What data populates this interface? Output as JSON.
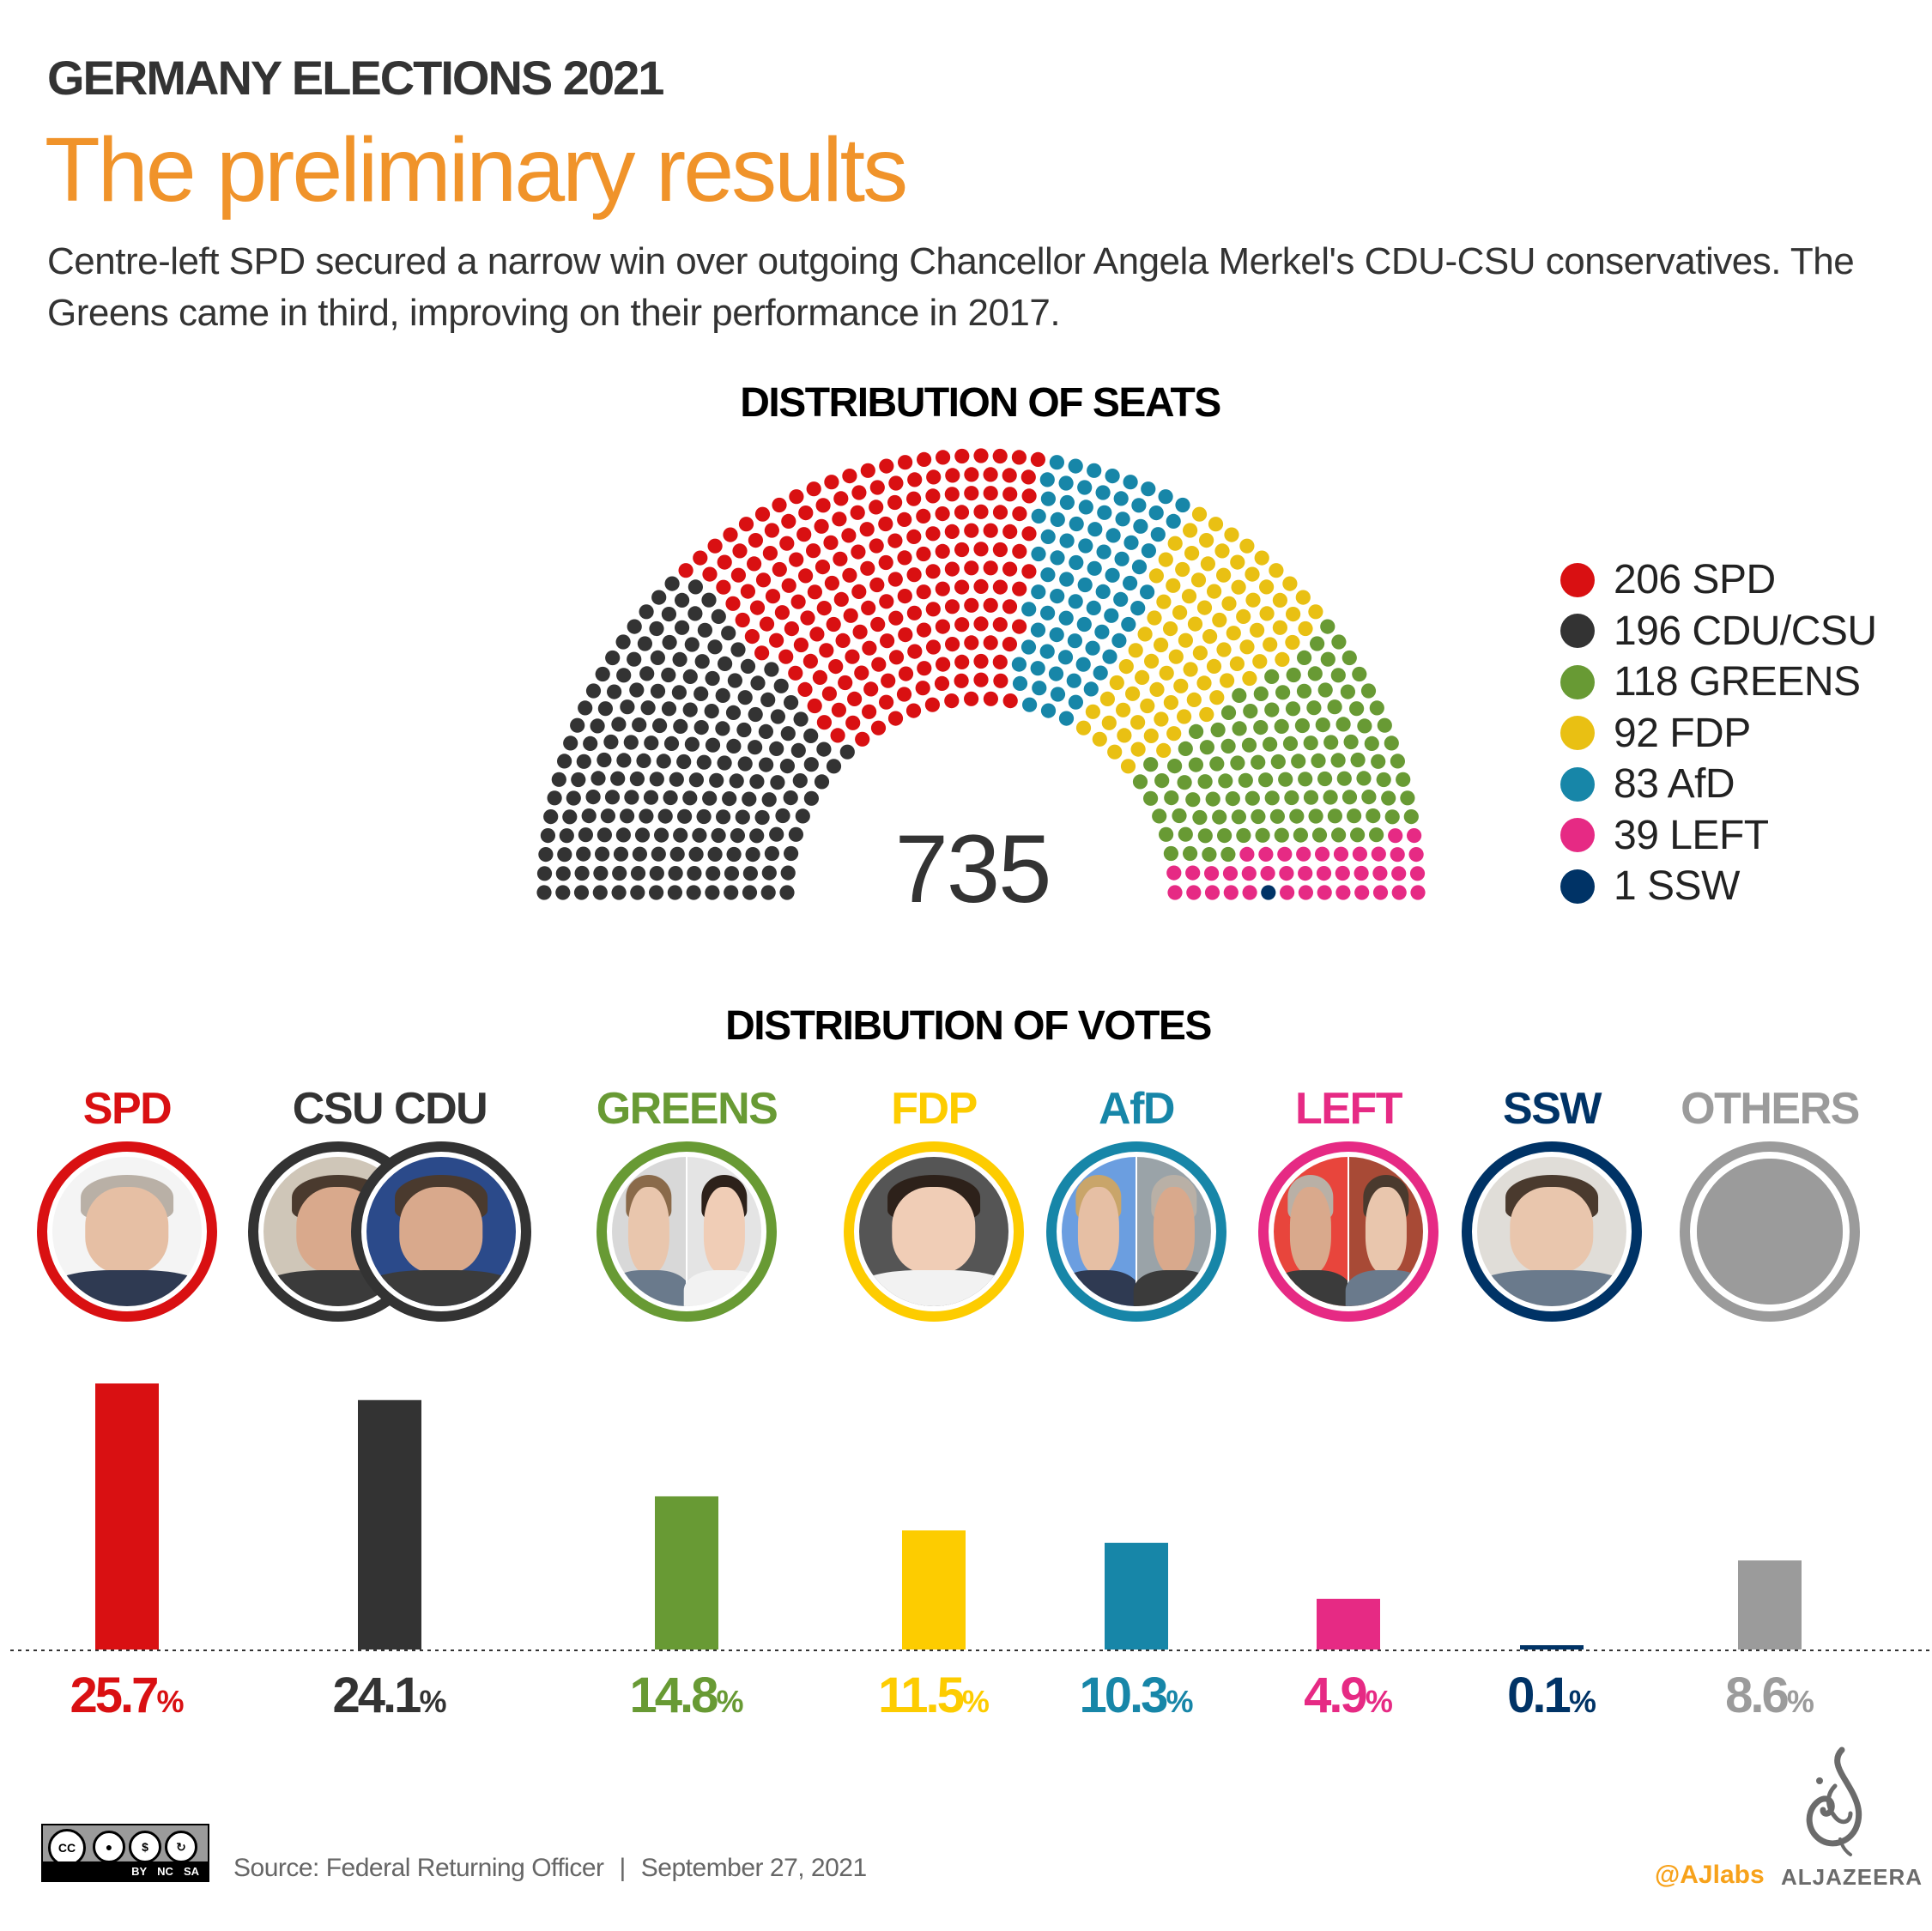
{
  "header": {
    "kicker": "GERMANY ELECTIONS 2021",
    "headline": "The preliminary results",
    "dek": "Centre-left SPD secured a narrow win over outgoing Chancellor Angela Merkel's CDU-CSU conservatives. The Greens came in third, improving on their performance in 2017.",
    "accent_color": "#f0932a"
  },
  "seats": {
    "title": "DISTRIBUTION OF SEATS",
    "total": "735",
    "legend": [
      {
        "label": "206 SPD",
        "color": "#d91012"
      },
      {
        "label": "196 CDU/CSU",
        "color": "#333333"
      },
      {
        "label": "118 GREENS",
        "color": "#689a34"
      },
      {
        "label": "92 FDP",
        "color": "#e9c013"
      },
      {
        "label": "83 AfD",
        "color": "#1786a8"
      },
      {
        "label": "39 LEFT",
        "color": "#e62a84"
      },
      {
        "label": "1 SSW",
        "color": "#003366"
      }
    ]
  },
  "votes": {
    "title": "DISTRIBUTION OF VOTES",
    "parties": [
      {
        "label": "SPD",
        "pct": "25.7",
        "color": "#d91012",
        "portrait": "single"
      },
      {
        "label": "CSU CDU",
        "pct": "24.1",
        "color": "#333333",
        "portrait": "double-overlap"
      },
      {
        "label": "GREENS",
        "pct": "14.8",
        "color": "#689a34",
        "portrait": "split"
      },
      {
        "label": "FDP",
        "pct": "11.5",
        "color": "#fdcc00",
        "portrait": "single"
      },
      {
        "label": "AfD",
        "pct": "10.3",
        "color": "#1786a8",
        "portrait": "split"
      },
      {
        "label": "LEFT",
        "pct": "4.9",
        "color": "#e62a84",
        "portrait": "split"
      },
      {
        "label": "SSW",
        "pct": "0.1",
        "color": "#003366",
        "portrait": "single"
      },
      {
        "label": "OTHERS",
        "pct": "8.6",
        "color": "#9b9b9b",
        "portrait": "placeholder"
      }
    ],
    "percent_symbol": "%"
  },
  "chart_data": [
    {
      "type": "parliament",
      "title": "DISTRIBUTION OF SEATS",
      "total": 735,
      "rings": 14,
      "series": [
        {
          "name": "CDU/CSU",
          "value": 196,
          "color": "#333333"
        },
        {
          "name": "SPD",
          "value": 206,
          "color": "#d91012"
        },
        {
          "name": "AfD",
          "value": 83,
          "color": "#1786a8"
        },
        {
          "name": "FDP",
          "value": 92,
          "color": "#e9c013"
        },
        {
          "name": "GREENS",
          "value": 118,
          "color": "#689a34"
        },
        {
          "name": "LEFT",
          "value": 39,
          "color": "#e62a84"
        },
        {
          "name": "SSW",
          "value": 1,
          "color": "#003366"
        }
      ],
      "legend": "right"
    },
    {
      "type": "bar",
      "title": "DISTRIBUTION OF VOTES",
      "categories": [
        "SPD",
        "CSU CDU",
        "GREENS",
        "FDP",
        "AfD",
        "LEFT",
        "SSW",
        "OTHERS"
      ],
      "values": [
        25.7,
        24.1,
        14.8,
        11.5,
        10.3,
        4.9,
        0.1,
        8.6
      ],
      "unit": "%",
      "xlabel": "",
      "ylabel": "",
      "ylim": [
        0,
        25.7
      ],
      "grid": false,
      "baseline": "dotted"
    }
  ],
  "footer": {
    "license_labels": [
      "BY",
      "NC",
      "SA"
    ],
    "license_icon_cc": "CC",
    "source": "Source: Federal Returning Officer",
    "separator": "|",
    "date": "September 27, 2021",
    "handle": "@AJlabs",
    "brand": "ALJAZEERA"
  }
}
